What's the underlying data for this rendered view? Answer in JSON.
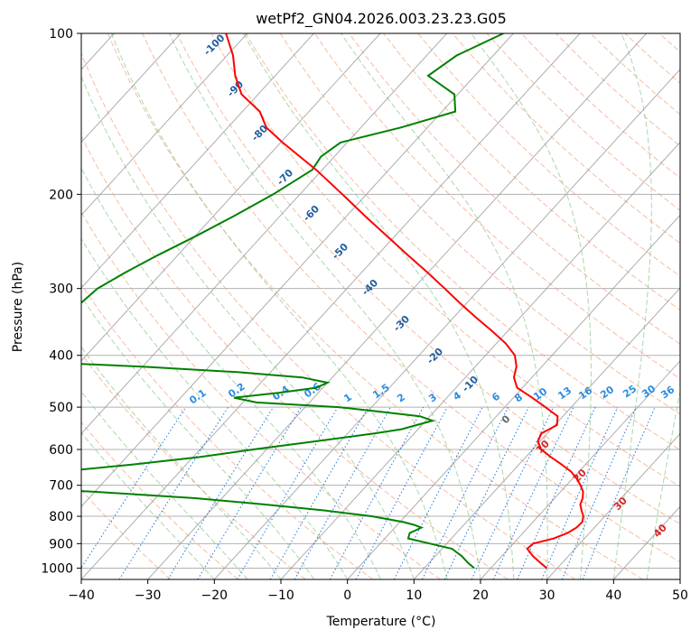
{
  "chart_data": {
    "type": "skew-t",
    "title": "wetPf2_GN04.2026.003.23.23.G05",
    "xlabel": "Temperature (°C)",
    "ylabel": "Pressure (hPa)",
    "xlim": [
      -40,
      50
    ],
    "ylim": [
      1050,
      100
    ],
    "y_scale": "log",
    "x_ticks": [
      "−40",
      "−30",
      "−20",
      "−10",
      "0",
      "10",
      "20",
      "30",
      "40",
      "50"
    ],
    "x_tick_values": [
      -40,
      -30,
      -20,
      -10,
      0,
      10,
      20,
      30,
      40,
      50
    ],
    "y_ticks": [
      "100",
      "200",
      "300",
      "400",
      "500",
      "600",
      "700",
      "800",
      "900",
      "1000"
    ],
    "y_tick_values": [
      100,
      200,
      300,
      400,
      500,
      600,
      700,
      800,
      900,
      1000
    ],
    "grid": true,
    "colors": {
      "temperature": "#ff0000",
      "dewpoint": "#008000",
      "isotherm": "#999999",
      "dry_adiabat": "#f4a582",
      "moist_adiabat": "#8fc98f",
      "mixing_ratio": "#1f77e0",
      "isotherm_label": "#1f5f9f",
      "adiabat_label": "#d62728"
    },
    "temperature_label": "Temperature",
    "dewpoint_label": "Dewpoint",
    "temperature": {
      "p": [
        1000,
        980,
        950,
        920,
        900,
        880,
        860,
        840,
        820,
        800,
        780,
        760,
        740,
        720,
        700,
        680,
        660,
        640,
        620,
        600,
        580,
        560,
        540,
        520,
        500,
        480,
        460,
        440,
        420,
        400,
        380,
        360,
        340,
        320,
        300,
        280,
        260,
        240,
        220,
        200,
        180,
        160,
        150,
        140,
        130,
        120,
        110,
        100
      ],
      "t": [
        28.4,
        26.9,
        24.7,
        22.8,
        23.0,
        25.4,
        26.7,
        27.3,
        27.4,
        26.8,
        25.7,
        24.7,
        24.2,
        23.4,
        22.1,
        20.6,
        18.8,
        16.4,
        13.8,
        11.3,
        9.7,
        9.1,
        10.3,
        9.2,
        6.1,
        2.8,
        -0.8,
        -2.7,
        -3.8,
        -5.6,
        -8.6,
        -12.4,
        -16.6,
        -20.9,
        -25.3,
        -30.1,
        -35.4,
        -41.0,
        -47.1,
        -53.6,
        -60.9,
        -69.7,
        -74.2,
        -77.4,
        -82.5,
        -86.0,
        -89.1,
        -93.2
      ]
    },
    "dewpoint": {
      "p": [
        1000,
        980,
        950,
        920,
        900,
        880,
        860,
        850,
        840,
        830,
        820,
        800,
        780,
        760,
        740,
        720,
        700,
        690,
        680,
        660,
        640,
        620,
        600,
        580,
        560,
        550,
        530,
        520,
        510,
        500,
        490,
        480,
        470,
        460,
        450,
        440,
        430,
        420,
        410,
        400,
        380,
        360,
        340,
        320,
        300,
        280,
        260,
        240,
        220,
        200,
        180,
        170,
        160,
        150,
        140,
        130,
        120,
        110,
        100
      ],
      "t": [
        17.5,
        16.0,
        14.0,
        11.5,
        7.5,
        3.5,
        3.0,
        3.5,
        4.0,
        2.5,
        0.5,
        -5.0,
        -13.0,
        -23.0,
        -34.0,
        -50.0,
        -70.0,
        -90.0,
        -80.0,
        -58.0,
        -48.0,
        -39.0,
        -32.0,
        -24.0,
        -16.0,
        -12.5,
        -9.0,
        -11.5,
        -18.0,
        -25.0,
        -38.0,
        -42.0,
        -36.0,
        -31.0,
        -30.0,
        -34.5,
        -45.0,
        -60.0,
        -80.0,
        -94.0,
        -85.0,
        -80.0,
        -79.0,
        -78.0,
        -77.5,
        -75.5,
        -73.0,
        -70.0,
        -67.0,
        -64.0,
        -61.5,
        -62.0,
        -61.0,
        -54.0,
        -48.0,
        -50.5,
        -57.0,
        -55.5,
        -51.5
      ]
    },
    "isotherm_labels": [
      "-100",
      "-90",
      "-80",
      "-70",
      "-60",
      "-50",
      "-40",
      "-30",
      "-20",
      "-10",
      "0",
      "10",
      "20",
      "30",
      "40"
    ],
    "isotherm_label_values": [
      -100,
      -90,
      -80,
      -70,
      -60,
      -50,
      -40,
      -30,
      -20,
      -10,
      0,
      10,
      20,
      30,
      40
    ],
    "mixing_ratio_labels": [
      "0.1",
      "0.2",
      "0.4",
      "0.6",
      "1",
      "1.5",
      "2",
      "3",
      "4",
      "6",
      "8",
      "10",
      "13",
      "16",
      "20",
      "25",
      "30",
      "36"
    ],
    "mixing_ratio_values": [
      0.1,
      0.2,
      0.4,
      0.6,
      1,
      1.5,
      2,
      3,
      4,
      6,
      8,
      10,
      13,
      16,
      20,
      25,
      30,
      36
    ]
  }
}
